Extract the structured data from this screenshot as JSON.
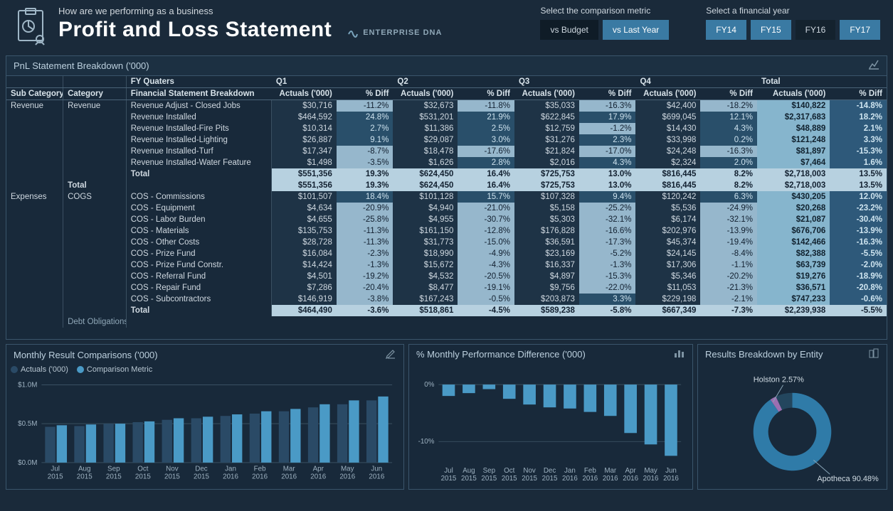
{
  "header": {
    "subtitle": "How are we performing as a business",
    "title": "Profit and Loss Statement",
    "brand": "ENTERPRISE DNA",
    "comparison": {
      "label": "Select the comparison metric",
      "options": [
        "vs Budget",
        "vs Last Year"
      ],
      "active_index": 1
    },
    "year": {
      "label": "Select a financial year",
      "options": [
        "FY14",
        "FY15",
        "FY16",
        "FY17"
      ],
      "active_index": 2
    }
  },
  "colors": {
    "bg": "#1a2a3a",
    "panel": "#18293a",
    "border": "#3a556b",
    "accent": "#3a7aa3",
    "bar_actuals": "#2a4a66",
    "bar_comparison": "#4a9ac6",
    "donut_main": "#2f7ba8",
    "donut_slice": "#9b6fb1",
    "text": "#cfd8e0"
  },
  "pnl": {
    "title": "PnL Statement Breakdown ('000)",
    "headers": {
      "sub_category": "Sub Category",
      "category": "Category",
      "fy_quarters_label": "FY Quaters",
      "line_label": "Financial Statement Breakdown",
      "quarter_labels": [
        "Q1",
        "Q2",
        "Q3",
        "Q4"
      ],
      "actuals_label": "Actuals ('000)",
      "pct_label": "% Diff",
      "total_label": "Total"
    },
    "groups": [
      {
        "sub_category": "Revenue",
        "category_blocks": [
          {
            "category": "Revenue",
            "rows": [
              {
                "label": "Revenue Adjust - Closed Jobs",
                "q": [
                  [
                    "$30,716",
                    "-11.2%"
                  ],
                  [
                    "$32,673",
                    "-11.8%"
                  ],
                  [
                    "$35,033",
                    "-16.3%"
                  ],
                  [
                    "$42,400",
                    "-18.2%"
                  ]
                ],
                "total": [
                  "$140,822",
                  "-14.8%"
                ],
                "diff_sign": [
                  -1,
                  -1,
                  -1,
                  -1,
                  -1
                ]
              },
              {
                "label": "Revenue Installed",
                "q": [
                  [
                    "$464,592",
                    "24.8%"
                  ],
                  [
                    "$531,201",
                    "21.9%"
                  ],
                  [
                    "$622,845",
                    "17.9%"
                  ],
                  [
                    "$699,045",
                    "12.1%"
                  ]
                ],
                "total": [
                  "$2,317,683",
                  "18.2%"
                ],
                "diff_sign": [
                  1,
                  1,
                  1,
                  1,
                  1
                ]
              },
              {
                "label": "Revenue Installed-Fire Pits",
                "q": [
                  [
                    "$10,314",
                    "2.7%"
                  ],
                  [
                    "$11,386",
                    "2.5%"
                  ],
                  [
                    "$12,759",
                    "-1.2%"
                  ],
                  [
                    "$14,430",
                    "4.3%"
                  ]
                ],
                "total": [
                  "$48,889",
                  "2.1%"
                ],
                "diff_sign": [
                  1,
                  1,
                  -1,
                  1,
                  1
                ]
              },
              {
                "label": "Revenue Installed-Lighting",
                "q": [
                  [
                    "$26,887",
                    "9.1%"
                  ],
                  [
                    "$29,087",
                    "3.0%"
                  ],
                  [
                    "$31,276",
                    "2.3%"
                  ],
                  [
                    "$33,998",
                    "0.2%"
                  ]
                ],
                "total": [
                  "$121,248",
                  "3.3%"
                ],
                "diff_sign": [
                  1,
                  1,
                  1,
                  1,
                  1
                ]
              },
              {
                "label": "Revenue Installed-Turf",
                "q": [
                  [
                    "$17,347",
                    "-8.7%"
                  ],
                  [
                    "$18,478",
                    "-17.6%"
                  ],
                  [
                    "$21,824",
                    "-17.0%"
                  ],
                  [
                    "$24,248",
                    "-16.3%"
                  ]
                ],
                "total": [
                  "$81,897",
                  "-15.3%"
                ],
                "diff_sign": [
                  -1,
                  -1,
                  -1,
                  -1,
                  -1
                ]
              },
              {
                "label": "Revenue Installed-Water Feature",
                "q": [
                  [
                    "$1,498",
                    "-3.5%"
                  ],
                  [
                    "$1,626",
                    "2.8%"
                  ],
                  [
                    "$2,016",
                    "4.3%"
                  ],
                  [
                    "$2,324",
                    "2.0%"
                  ]
                ],
                "total": [
                  "$7,464",
                  "1.6%"
                ],
                "diff_sign": [
                  -1,
                  1,
                  1,
                  1,
                  1
                ]
              }
            ],
            "subtotal": {
              "label": "Total",
              "q": [
                [
                  "$551,356",
                  "19.3%"
                ],
                [
                  "$624,450",
                  "16.4%"
                ],
                [
                  "$725,753",
                  "13.0%"
                ],
                [
                  "$816,445",
                  "8.2%"
                ]
              ],
              "total": [
                "$2,718,003",
                "13.5%"
              ]
            }
          }
        ],
        "group_total": {
          "label": "Total",
          "q": [
            [
              "$551,356",
              "19.3%"
            ],
            [
              "$624,450",
              "16.4%"
            ],
            [
              "$725,753",
              "13.0%"
            ],
            [
              "$816,445",
              "8.2%"
            ]
          ],
          "total": [
            "$2,718,003",
            "13.5%"
          ]
        }
      },
      {
        "sub_category": "Expenses",
        "category_blocks": [
          {
            "category": "COGS",
            "rows": [
              {
                "label": "COS - Commissions",
                "q": [
                  [
                    "$101,507",
                    "18.4%"
                  ],
                  [
                    "$101,128",
                    "15.7%"
                  ],
                  [
                    "$107,328",
                    "9.4%"
                  ],
                  [
                    "$120,242",
                    "6.3%"
                  ]
                ],
                "total": [
                  "$430,205",
                  "12.0%"
                ],
                "diff_sign": [
                  1,
                  1,
                  1,
                  1,
                  1
                ]
              },
              {
                "label": "COS - Equipment",
                "q": [
                  [
                    "$4,634",
                    "-20.9%"
                  ],
                  [
                    "$4,940",
                    "-21.0%"
                  ],
                  [
                    "$5,158",
                    "-25.2%"
                  ],
                  [
                    "$5,536",
                    "-24.9%"
                  ]
                ],
                "total": [
                  "$20,268",
                  "-23.2%"
                ],
                "diff_sign": [
                  -1,
                  -1,
                  -1,
                  -1,
                  -1
                ]
              },
              {
                "label": "COS - Labor Burden",
                "q": [
                  [
                    "$4,655",
                    "-25.8%"
                  ],
                  [
                    "$4,955",
                    "-30.7%"
                  ],
                  [
                    "$5,303",
                    "-32.1%"
                  ],
                  [
                    "$6,174",
                    "-32.1%"
                  ]
                ],
                "total": [
                  "$21,087",
                  "-30.4%"
                ],
                "diff_sign": [
                  -1,
                  -1,
                  -1,
                  -1,
                  -1
                ]
              },
              {
                "label": "COS - Materials",
                "q": [
                  [
                    "$135,753",
                    "-11.3%"
                  ],
                  [
                    "$161,150",
                    "-12.8%"
                  ],
                  [
                    "$176,828",
                    "-16.6%"
                  ],
                  [
                    "$202,976",
                    "-13.9%"
                  ]
                ],
                "total": [
                  "$676,706",
                  "-13.9%"
                ],
                "diff_sign": [
                  -1,
                  -1,
                  -1,
                  -1,
                  -1
                ]
              },
              {
                "label": "COS - Other Costs",
                "q": [
                  [
                    "$28,728",
                    "-11.3%"
                  ],
                  [
                    "$31,773",
                    "-15.0%"
                  ],
                  [
                    "$36,591",
                    "-17.3%"
                  ],
                  [
                    "$45,374",
                    "-19.4%"
                  ]
                ],
                "total": [
                  "$142,466",
                  "-16.3%"
                ],
                "diff_sign": [
                  -1,
                  -1,
                  -1,
                  -1,
                  -1
                ]
              },
              {
                "label": "COS - Prize Fund",
                "q": [
                  [
                    "$16,084",
                    "-2.3%"
                  ],
                  [
                    "$18,990",
                    "-4.9%"
                  ],
                  [
                    "$23,169",
                    "-5.2%"
                  ],
                  [
                    "$24,145",
                    "-8.4%"
                  ]
                ],
                "total": [
                  "$82,388",
                  "-5.5%"
                ],
                "diff_sign": [
                  -1,
                  -1,
                  -1,
                  -1,
                  -1
                ]
              },
              {
                "label": "COS - Prize Fund Constr.",
                "q": [
                  [
                    "$14,424",
                    "-1.3%"
                  ],
                  [
                    "$15,672",
                    "-4.3%"
                  ],
                  [
                    "$16,337",
                    "-1.3%"
                  ],
                  [
                    "$17,306",
                    "-1.1%"
                  ]
                ],
                "total": [
                  "$63,739",
                  "-2.0%"
                ],
                "diff_sign": [
                  -1,
                  -1,
                  -1,
                  -1,
                  -1
                ]
              },
              {
                "label": "COS - Referral Fund",
                "q": [
                  [
                    "$4,501",
                    "-19.2%"
                  ],
                  [
                    "$4,532",
                    "-20.5%"
                  ],
                  [
                    "$4,897",
                    "-15.3%"
                  ],
                  [
                    "$5,346",
                    "-20.2%"
                  ]
                ],
                "total": [
                  "$19,276",
                  "-18.9%"
                ],
                "diff_sign": [
                  -1,
                  -1,
                  -1,
                  -1,
                  -1
                ]
              },
              {
                "label": "COS - Repair Fund",
                "q": [
                  [
                    "$7,286",
                    "-20.4%"
                  ],
                  [
                    "$8,477",
                    "-19.1%"
                  ],
                  [
                    "$9,756",
                    "-22.0%"
                  ],
                  [
                    "$11,053",
                    "-21.3%"
                  ]
                ],
                "total": [
                  "$36,571",
                  "-20.8%"
                ],
                "diff_sign": [
                  -1,
                  -1,
                  -1,
                  -1,
                  -1
                ]
              },
              {
                "label": "COS - Subcontractors",
                "q": [
                  [
                    "$146,919",
                    "-3.8%"
                  ],
                  [
                    "$167,243",
                    "-0.5%"
                  ],
                  [
                    "$203,873",
                    "3.3%"
                  ],
                  [
                    "$229,198",
                    "-2.1%"
                  ]
                ],
                "total": [
                  "$747,233",
                  "-0.6%"
                ],
                "diff_sign": [
                  -1,
                  -1,
                  1,
                  -1,
                  -1
                ]
              }
            ],
            "subtotal": {
              "label": "Total",
              "q": [
                [
                  "$464,490",
                  "-3.6%"
                ],
                [
                  "$518,861",
                  "-4.5%"
                ],
                [
                  "$589,238",
                  "-5.8%"
                ],
                [
                  "$667,349",
                  "-7.3%"
                ]
              ],
              "total": [
                "$2,239,938",
                "-5.5%"
              ]
            }
          },
          {
            "category": "Debt Obligations",
            "rows": [],
            "truncated": true
          }
        ]
      }
    ]
  },
  "monthly_chart": {
    "title": "Monthly Result Comparisons ('000)",
    "legend": [
      "Actuals ('000)",
      "Comparison Metric"
    ],
    "y_ticks": [
      "$1.0M",
      "$0.5M",
      "$0.0M"
    ],
    "y_max": 1.0,
    "months": [
      "Jul 2015",
      "Aug 2015",
      "Sep 2015",
      "Oct 2015",
      "Nov 2015",
      "Dec 2015",
      "Jan 2016",
      "Feb 2016",
      "Mar 2016",
      "Apr 2016",
      "May 2016",
      "Jun 2016"
    ],
    "actuals": [
      0.46,
      0.47,
      0.5,
      0.52,
      0.55,
      0.57,
      0.6,
      0.63,
      0.66,
      0.71,
      0.75,
      0.8
    ],
    "comparison": [
      0.48,
      0.49,
      0.5,
      0.53,
      0.57,
      0.59,
      0.62,
      0.66,
      0.69,
      0.75,
      0.8,
      0.85
    ]
  },
  "pct_chart": {
    "title": "% Monthly Performance Difference ('000)",
    "y_ticks": [
      "0%",
      "-10%"
    ],
    "y_range": [
      -14,
      2
    ],
    "months": [
      "Jul 2015",
      "Aug 2015",
      "Sep 2015",
      "Oct 2015",
      "Nov 2015",
      "Dec 2015",
      "Jan 2016",
      "Feb 2016",
      "Mar 2016",
      "Apr 2016",
      "May 2016",
      "Jun 2016"
    ],
    "values": [
      -2.0,
      -1.5,
      -0.8,
      -2.5,
      -3.5,
      -4.0,
      -4.2,
      -4.8,
      -5.5,
      -8.5,
      -10.5,
      -12.5
    ]
  },
  "donut": {
    "title": "Results Breakdown by Entity",
    "slices": [
      {
        "label": "Apotheca",
        "value": 90.48,
        "color": "#2f7ba8",
        "display": "Apotheca 90.48%"
      },
      {
        "label": "Holston",
        "value": 2.57,
        "color": "#9b6fb1",
        "display": "Holston 2.57%"
      }
    ],
    "remainder_color": "#23465e"
  }
}
